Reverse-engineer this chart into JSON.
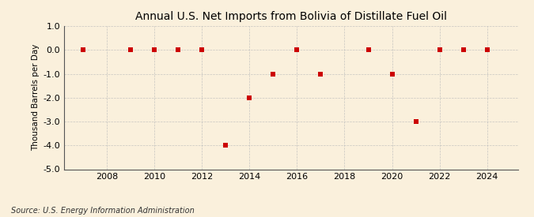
{
  "title": "Annual U.S. Net Imports from Bolivia of Distillate Fuel Oil",
  "ylabel": "Thousand Barrels per Day",
  "source": "Source: U.S. Energy Information Administration",
  "years": [
    2007,
    2009,
    2010,
    2011,
    2012,
    2013,
    2014,
    2015,
    2016,
    2017,
    2019,
    2020,
    2021,
    2022,
    2023,
    2024
  ],
  "values": [
    0,
    0,
    0,
    0,
    0,
    -4,
    -2,
    -1,
    0,
    -1,
    0,
    -1,
    -3,
    0,
    0,
    0
  ],
  "marker_color": "#CC0000",
  "marker_style": "s",
  "marker_size": 4,
  "xlim": [
    2006.2,
    2025.3
  ],
  "ylim": [
    -5.0,
    1.0
  ],
  "yticks": [
    1.0,
    0.0,
    -1.0,
    -2.0,
    -3.0,
    -4.0,
    -5.0
  ],
  "xticks": [
    2008,
    2010,
    2012,
    2014,
    2016,
    2018,
    2020,
    2022,
    2024
  ],
  "background_color": "#FAF0DC",
  "grid_color": "#BBBBBB",
  "title_fontsize": 10,
  "label_fontsize": 7.5,
  "tick_fontsize": 8,
  "source_fontsize": 7
}
